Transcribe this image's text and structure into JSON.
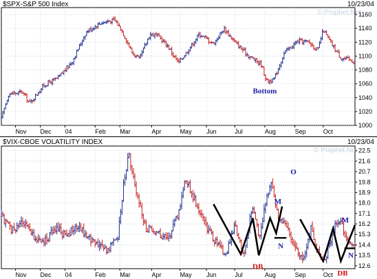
{
  "chart_data": [
    {
      "type": "line",
      "title": "$SPX-S&P 500 Index",
      "date": "10/23/04",
      "watermark": "© Prophet.Net",
      "ylim": [
        1000,
        1170
      ],
      "y_ticks": [
        1000,
        1020,
        1040,
        1060,
        1080,
        1100,
        1120,
        1140,
        1160
      ],
      "x_ticks": [
        "Nov",
        "Dec",
        "04",
        "Feb",
        "Mar",
        "Apr",
        "May",
        "Jun",
        "Jul",
        "Aug",
        "Sep",
        "Oct"
      ],
      "x_tick_pos": [
        0.04,
        0.11,
        0.18,
        0.265,
        0.335,
        0.425,
        0.505,
        0.58,
        0.66,
        0.745,
        0.83,
        0.91
      ],
      "anchors": [
        [
          0,
          1010
        ],
        [
          0.02,
          1045
        ],
        [
          0.06,
          1048
        ],
        [
          0.08,
          1032
        ],
        [
          0.12,
          1058
        ],
        [
          0.16,
          1068
        ],
        [
          0.2,
          1092
        ],
        [
          0.24,
          1135
        ],
        [
          0.28,
          1148
        ],
        [
          0.32,
          1152
        ],
        [
          0.34,
          1138
        ],
        [
          0.37,
          1105
        ],
        [
          0.39,
          1095
        ],
        [
          0.42,
          1132
        ],
        [
          0.44,
          1130
        ],
        [
          0.47,
          1115
        ],
        [
          0.5,
          1090
        ],
        [
          0.53,
          1110
        ],
        [
          0.56,
          1132
        ],
        [
          0.6,
          1118
        ],
        [
          0.63,
          1140
        ],
        [
          0.66,
          1120
        ],
        [
          0.7,
          1100
        ],
        [
          0.735,
          1088
        ],
        [
          0.75,
          1064
        ],
        [
          0.77,
          1065
        ],
        [
          0.8,
          1105
        ],
        [
          0.84,
          1122
        ],
        [
          0.87,
          1120
        ],
        [
          0.895,
          1108
        ],
        [
          0.91,
          1138
        ],
        [
          0.93,
          1120
        ],
        [
          0.96,
          1098
        ],
        [
          1.0,
          1092
        ]
      ],
      "annotations": [
        {
          "text": "Bottom",
          "x": 0.745,
          "y": 1050,
          "color": "#1a1aa6"
        }
      ]
    },
    {
      "type": "line",
      "title": "$VIX-CBOE VOLATILITY INDEX",
      "date": "10/23/04",
      "watermark": "© Prophet.Net",
      "ylim": [
        12.35,
        22.9
      ],
      "y_ticks": [
        12.6,
        13.5,
        14.4,
        15.3,
        16.2,
        17.1,
        18.0,
        18.9,
        19.8,
        20.7,
        21.6,
        22.5
      ],
      "x_ticks": [
        "Nov",
        "Dec",
        "04",
        "Feb",
        "Mar",
        "Apr",
        "May",
        "Jun",
        "Jul",
        "Aug",
        "Sep",
        "Oct"
      ],
      "x_tick_pos": [
        0.04,
        0.11,
        0.18,
        0.265,
        0.335,
        0.425,
        0.505,
        0.58,
        0.66,
        0.745,
        0.83,
        0.91
      ],
      "anchors": [
        [
          0,
          16.8
        ],
        [
          0.03,
          15.6
        ],
        [
          0.06,
          16.4
        ],
        [
          0.09,
          15.1
        ],
        [
          0.12,
          14.6
        ],
        [
          0.15,
          15.8
        ],
        [
          0.18,
          15.3
        ],
        [
          0.22,
          15.9
        ],
        [
          0.26,
          14.6
        ],
        [
          0.3,
          14.0
        ],
        [
          0.33,
          15.2
        ],
        [
          0.345,
          19.5
        ],
        [
          0.36,
          22.2
        ],
        [
          0.38,
          19.0
        ],
        [
          0.41,
          15.8
        ],
        [
          0.44,
          15.5
        ],
        [
          0.47,
          14.8
        ],
        [
          0.5,
          17.0
        ],
        [
          0.52,
          20.2
        ],
        [
          0.55,
          18.0
        ],
        [
          0.58,
          16.0
        ],
        [
          0.61,
          14.4
        ],
        [
          0.635,
          13.6
        ],
        [
          0.66,
          16.1
        ],
        [
          0.685,
          13.4
        ],
        [
          0.71,
          17.8
        ],
        [
          0.73,
          15.0
        ],
        [
          0.75,
          18.5
        ],
        [
          0.765,
          19.8
        ],
        [
          0.78,
          17.0
        ],
        [
          0.8,
          16.2
        ],
        [
          0.83,
          14.2
        ],
        [
          0.855,
          13.3
        ],
        [
          0.875,
          15.8
        ],
        [
          0.895,
          13.8
        ],
        [
          0.915,
          13.1
        ],
        [
          0.94,
          15.8
        ],
        [
          0.96,
          16.5
        ],
        [
          0.98,
          14.6
        ],
        [
          1.0,
          14.4
        ]
      ],
      "trendline": [
        [
          0.6,
          17.9
        ],
        [
          0.677,
          13.6
        ],
        [
          0.711,
          16.7
        ],
        [
          0.728,
          13.5
        ],
        [
          0.76,
          16.7
        ],
        [
          0.777,
          15.4
        ],
        [
          0.794,
          17.7
        ]
      ],
      "trendline_gap": [
        [
          0.845,
          16.6
        ],
        [
          0.91,
          13.0
        ],
        [
          0.938,
          15.8
        ],
        [
          0.96,
          13.0
        ],
        [
          1.02,
          16.1
        ]
      ],
      "flat_marks": [
        [
          0.772,
          0.806,
          15.0
        ],
        [
          0.97,
          1.0,
          14.1
        ]
      ],
      "annotations": [
        {
          "text": "M",
          "x": 0.782,
          "y": 18.15,
          "color": "#1a1aa6"
        },
        {
          "text": "N",
          "x": 0.79,
          "y": 14.35,
          "color": "#1a1aa6"
        },
        {
          "text": "O",
          "x": 0.826,
          "y": 20.7,
          "color": "#1a1aa6"
        },
        {
          "text": "DB",
          "x": 0.725,
          "y": 12.55,
          "color": "#cc1111"
        },
        {
          "text": "M",
          "x": 1.02,
          "y": 16.55,
          "color": "#1a1aa6"
        },
        {
          "text": "N",
          "x": 1.04,
          "y": 13.55,
          "color": "#1a1aa6"
        },
        {
          "text": "DB",
          "x": 0.965,
          "y": 12.0,
          "color": "#cc1111"
        }
      ]
    }
  ],
  "colors": {
    "up": "#1a2a8c",
    "down": "#c41818",
    "line": "#000000",
    "grid": "#b0b8c8"
  }
}
